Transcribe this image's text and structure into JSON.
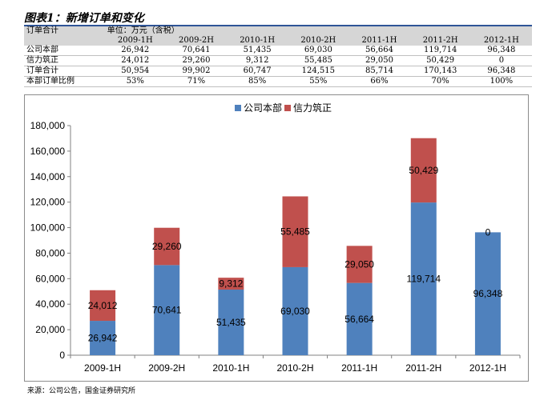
{
  "figure_title": "图表1：新增订单和变化",
  "source": "来源：公司公告，国金证券研究所",
  "table": {
    "header_label": "订单合计",
    "unit_label": "单位：万元（含税）",
    "periods": [
      "2009-1H",
      "2009-2H",
      "2010-1H",
      "2010-2H",
      "2011-1H",
      "2011-2H",
      "2012-1H"
    ],
    "rows": [
      {
        "label": "公司本部",
        "values": [
          "26,942",
          "70,641",
          "51,435",
          "69,030",
          "56,664",
          "119,714",
          "96,348"
        ]
      },
      {
        "label": "信力筑正",
        "values": [
          "24,012",
          "29,260",
          "9,312",
          "55,485",
          "29,050",
          "50,429",
          "0"
        ]
      },
      {
        "label": "订单合计",
        "values": [
          "50,954",
          "99,902",
          "60,747",
          "124,515",
          "85,714",
          "170,143",
          "96,348"
        ]
      },
      {
        "label": "本部订单比例",
        "values": [
          "53%",
          "71%",
          "85%",
          "55%",
          "66%",
          "70%",
          "100%"
        ]
      }
    ]
  },
  "chart_data": {
    "type": "bar",
    "stacked": true,
    "categories": [
      "2009-1H",
      "2009-2H",
      "2010-1H",
      "2010-2H",
      "2011-1H",
      "2011-2H",
      "2012-1H"
    ],
    "series": [
      {
        "name": "公司本部",
        "color": "#4f81bd",
        "values": [
          26942,
          70641,
          51435,
          69030,
          56664,
          119714,
          96348
        ]
      },
      {
        "name": "信力筑正",
        "color": "#c0504d",
        "values": [
          24012,
          29260,
          9312,
          55485,
          29050,
          50429,
          0
        ]
      }
    ],
    "data_labels": {
      "s0": [
        "26,942",
        "70,641",
        "51,435",
        "69,030",
        "56,664",
        "119,714",
        "96,348"
      ],
      "s1": [
        "24,012",
        "29,260",
        "9,312",
        "55,485",
        "29,050",
        "50,429",
        "0"
      ]
    },
    "ylim": [
      0,
      180000
    ],
    "yticks": [
      0,
      20000,
      40000,
      60000,
      80000,
      100000,
      120000,
      140000,
      160000,
      180000
    ],
    "ytick_labels": [
      "0",
      "20,000",
      "40,000",
      "60,000",
      "80,000",
      "100,000",
      "120,000",
      "140,000",
      "160,000",
      "180,000"
    ],
    "legend_position": "top-center",
    "grid": false
  }
}
